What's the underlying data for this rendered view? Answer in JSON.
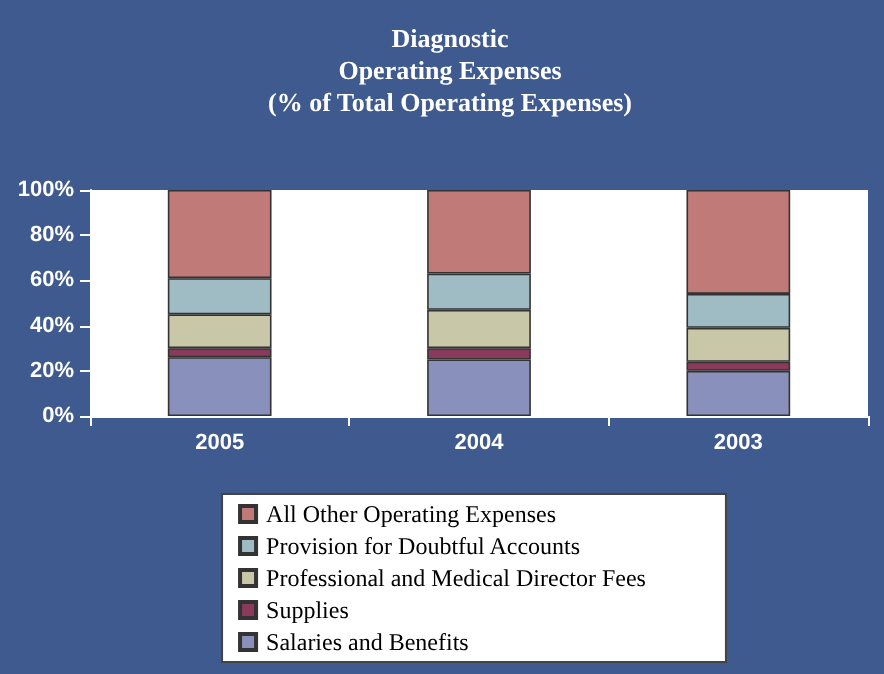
{
  "chart_data": {
    "type": "bar",
    "stacked": true,
    "title": "Diagnostic\nOperating Expenses\n(% of Total Operating Expenses)",
    "categories": [
      "2005",
      "2004",
      "2003"
    ],
    "series": [
      {
        "name": "Salaries and Benefits",
        "color": "#8890bb",
        "values": [
          26,
          25,
          20
        ]
      },
      {
        "name": "Supplies",
        "color": "#8a3a5a",
        "values": [
          4,
          5,
          4
        ]
      },
      {
        "name": "Professional and Medical Director Fees",
        "color": "#c8c8a8",
        "values": [
          15,
          17,
          15
        ]
      },
      {
        "name": "Provision for Doubtful Accounts",
        "color": "#9fbcc4",
        "values": [
          16,
          16,
          15
        ]
      },
      {
        "name": "All Other Operating Expenses",
        "color": "#c07a78",
        "values": [
          39,
          37,
          46
        ]
      }
    ],
    "ylim": [
      0,
      100
    ],
    "yticks": [
      {
        "value": 0,
        "label": "0%"
      },
      {
        "value": 20,
        "label": "20%"
      },
      {
        "value": 40,
        "label": "40%"
      },
      {
        "value": 60,
        "label": "60%"
      },
      {
        "value": 80,
        "label": "80%"
      },
      {
        "value": 100,
        "label": "100%"
      }
    ],
    "grid": false,
    "legend": "bottom"
  }
}
